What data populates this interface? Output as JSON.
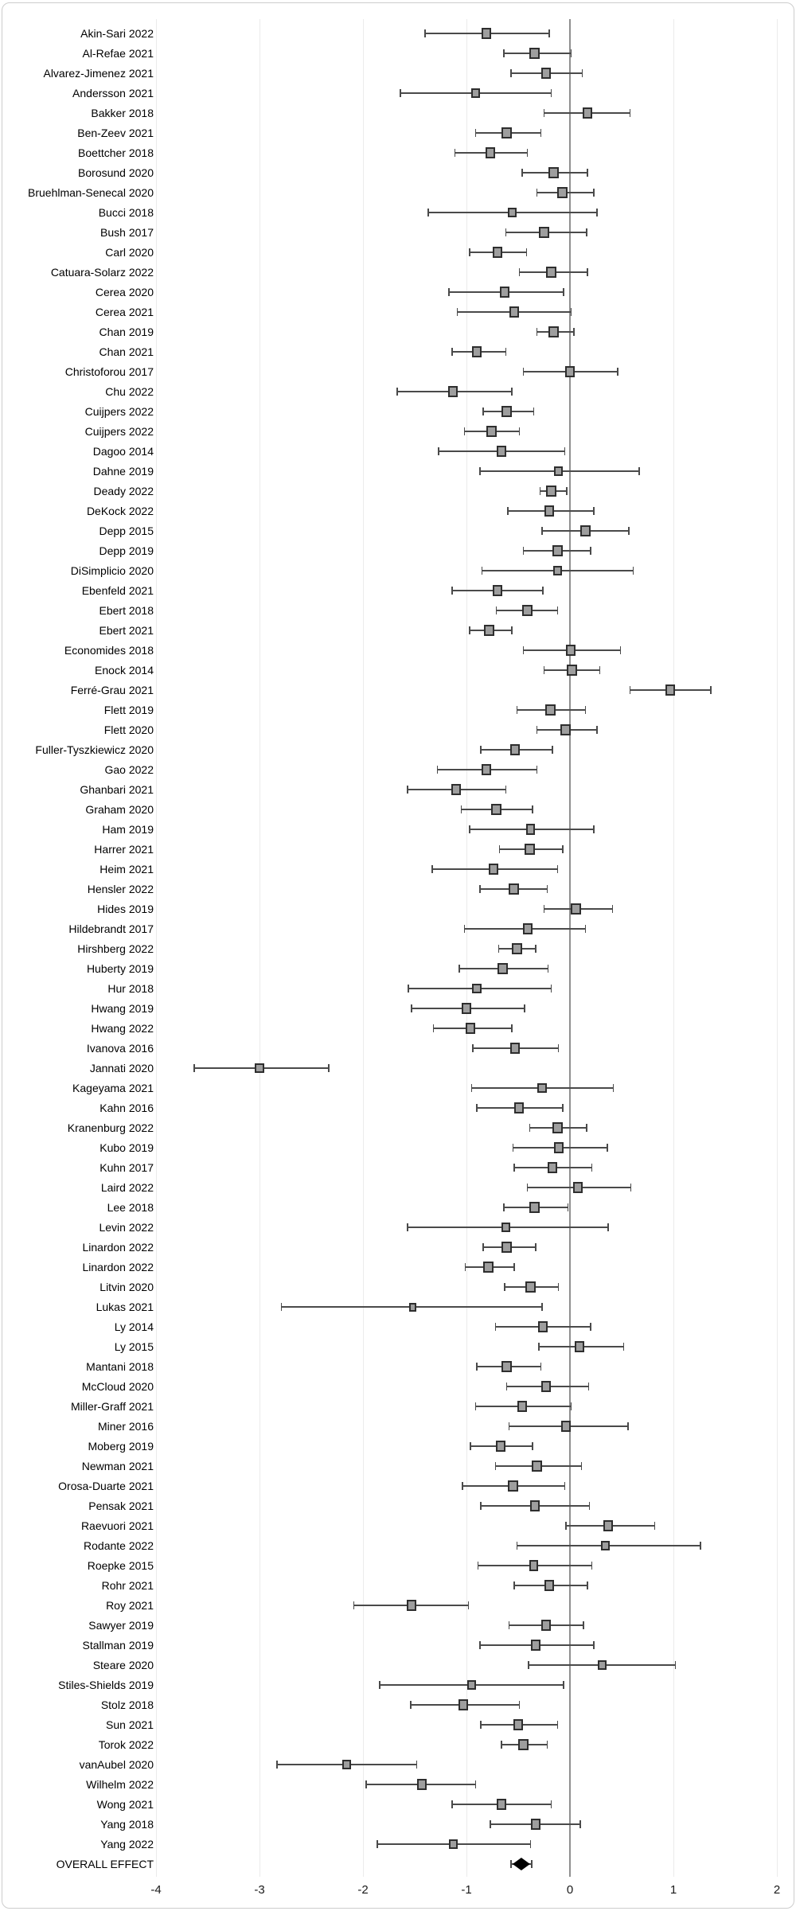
{
  "chart_data": {
    "type": "forest",
    "title": "",
    "xlabel": "",
    "ylabel": "",
    "xlim": [
      -4,
      2
    ],
    "x_ticks": [
      -4,
      -3,
      -2,
      -1,
      0,
      1,
      2
    ],
    "zero_line": 0,
    "grid": "vertical-light",
    "legend": "none",
    "marker": "gray-square-with-dark-border",
    "overall_marker": "black-diamond",
    "studies": [
      {
        "label": "Akin-Sari 2022",
        "est": -0.81,
        "lo": -1.4,
        "hi": -0.2
      },
      {
        "label": "Al-Refae 2021",
        "est": -0.34,
        "lo": -0.64,
        "hi": 0.01
      },
      {
        "label": "Alvarez-Jimenez 2021",
        "est": -0.23,
        "lo": -0.57,
        "hi": 0.12
      },
      {
        "label": "Andersson 2021",
        "est": -0.91,
        "lo": -1.64,
        "hi": -0.18
      },
      {
        "label": "Bakker 2018",
        "est": 0.17,
        "lo": -0.25,
        "hi": 0.58
      },
      {
        "label": "Ben-Zeev 2021",
        "est": -0.61,
        "lo": -0.91,
        "hi": -0.28
      },
      {
        "label": "Boettcher 2018",
        "est": -0.77,
        "lo": -1.11,
        "hi": -0.41
      },
      {
        "label": "Borosund 2020",
        "est": -0.16,
        "lo": -0.46,
        "hi": 0.17
      },
      {
        "label": "Bruehlman-Senecal 2020",
        "est": -0.07,
        "lo": -0.32,
        "hi": 0.23
      },
      {
        "label": "Bucci 2018",
        "est": -0.56,
        "lo": -1.37,
        "hi": 0.26
      },
      {
        "label": "Bush 2017",
        "est": -0.25,
        "lo": -0.62,
        "hi": 0.16
      },
      {
        "label": "Carl 2020",
        "est": -0.7,
        "lo": -0.97,
        "hi": -0.42
      },
      {
        "label": "Catuara-Solarz 2022",
        "est": -0.18,
        "lo": -0.49,
        "hi": 0.17
      },
      {
        "label": "Cerea 2020",
        "est": -0.63,
        "lo": -1.17,
        "hi": -0.06
      },
      {
        "label": "Cerea 2021",
        "est": -0.54,
        "lo": -1.09,
        "hi": 0.01
      },
      {
        "label": "Chan 2019",
        "est": -0.16,
        "lo": -0.32,
        "hi": 0.04
      },
      {
        "label": "Chan 2021",
        "est": -0.9,
        "lo": -1.14,
        "hi": -0.62
      },
      {
        "label": "Christoforou 2017",
        "est": 0.0,
        "lo": -0.45,
        "hi": 0.46
      },
      {
        "label": "Chu 2022",
        "est": -1.13,
        "lo": -1.67,
        "hi": -0.56
      },
      {
        "label": "Cuijpers 2022",
        "est": -0.61,
        "lo": -0.84,
        "hi": -0.35
      },
      {
        "label": "Cuijpers 2022",
        "est": -0.76,
        "lo": -1.02,
        "hi": -0.49
      },
      {
        "label": "Dagoo 2014",
        "est": -0.66,
        "lo": -1.27,
        "hi": -0.05
      },
      {
        "label": "Dahne 2019",
        "est": -0.11,
        "lo": -0.87,
        "hi": 0.67
      },
      {
        "label": "Deady 2022",
        "est": -0.18,
        "lo": -0.29,
        "hi": -0.03
      },
      {
        "label": "DeKock 2022",
        "est": -0.2,
        "lo": -0.6,
        "hi": 0.23
      },
      {
        "label": "Depp 2015",
        "est": 0.15,
        "lo": -0.27,
        "hi": 0.57
      },
      {
        "label": "Depp 2019",
        "est": -0.12,
        "lo": -0.45,
        "hi": 0.2
      },
      {
        "label": "DiSimplicio 2020",
        "est": -0.12,
        "lo": -0.85,
        "hi": 0.61
      },
      {
        "label": "Ebenfeld 2021",
        "est": -0.7,
        "lo": -1.14,
        "hi": -0.26
      },
      {
        "label": "Ebert 2018",
        "est": -0.41,
        "lo": -0.71,
        "hi": -0.12
      },
      {
        "label": "Ebert 2021",
        "est": -0.78,
        "lo": -0.97,
        "hi": -0.56
      },
      {
        "label": "Economides 2018",
        "est": 0.01,
        "lo": -0.45,
        "hi": 0.49
      },
      {
        "label": "Enock 2014",
        "est": 0.02,
        "lo": -0.25,
        "hi": 0.29
      },
      {
        "label": "Ferré-Grau 2021",
        "est": 0.97,
        "lo": 0.58,
        "hi": 1.36
      },
      {
        "label": "Flett 2019",
        "est": -0.19,
        "lo": -0.51,
        "hi": 0.15
      },
      {
        "label": "Flett 2020",
        "est": -0.04,
        "lo": -0.32,
        "hi": 0.26
      },
      {
        "label": "Fuller-Tyszkiewicz 2020",
        "est": -0.53,
        "lo": -0.86,
        "hi": -0.17
      },
      {
        "label": "Gao 2022",
        "est": -0.81,
        "lo": -1.28,
        "hi": -0.32
      },
      {
        "label": "Ghanbari 2021",
        "est": -1.1,
        "lo": -1.57,
        "hi": -0.62
      },
      {
        "label": "Graham 2020",
        "est": -0.71,
        "lo": -1.05,
        "hi": -0.36
      },
      {
        "label": "Ham 2019",
        "est": -0.38,
        "lo": -0.97,
        "hi": 0.23
      },
      {
        "label": "Harrer 2021",
        "est": -0.39,
        "lo": -0.68,
        "hi": -0.07
      },
      {
        "label": "Heim 2021",
        "est": -0.74,
        "lo": -1.33,
        "hi": -0.12
      },
      {
        "label": "Hensler 2022",
        "est": -0.54,
        "lo": -0.87,
        "hi": -0.22
      },
      {
        "label": "Hides 2019",
        "est": 0.06,
        "lo": -0.25,
        "hi": 0.41
      },
      {
        "label": "Hildebrandt 2017",
        "est": -0.41,
        "lo": -1.02,
        "hi": 0.15
      },
      {
        "label": "Hirshberg 2022",
        "est": -0.51,
        "lo": -0.69,
        "hi": -0.33
      },
      {
        "label": "Huberty 2019",
        "est": -0.65,
        "lo": -1.07,
        "hi": -0.21
      },
      {
        "label": "Hur 2018",
        "est": -0.9,
        "lo": -1.56,
        "hi": -0.18
      },
      {
        "label": "Hwang 2019",
        "est": -1.0,
        "lo": -1.53,
        "hi": -0.44
      },
      {
        "label": "Hwang 2022",
        "est": -0.96,
        "lo": -1.32,
        "hi": -0.56
      },
      {
        "label": "Ivanova 2016",
        "est": -0.53,
        "lo": -0.94,
        "hi": -0.11
      },
      {
        "label": "Jannati 2020",
        "est": -3.0,
        "lo": -3.63,
        "hi": -2.33
      },
      {
        "label": "Kageyama 2021",
        "est": -0.27,
        "lo": -0.95,
        "hi": 0.42
      },
      {
        "label": "Kahn 2016",
        "est": -0.49,
        "lo": -0.9,
        "hi": -0.07
      },
      {
        "label": "Kranenburg 2022",
        "est": -0.12,
        "lo": -0.39,
        "hi": 0.16
      },
      {
        "label": "Kubo 2019",
        "est": -0.11,
        "lo": -0.55,
        "hi": 0.36
      },
      {
        "label": "Kuhn 2017",
        "est": -0.17,
        "lo": -0.54,
        "hi": 0.21
      },
      {
        "label": "Laird 2022",
        "est": 0.08,
        "lo": -0.41,
        "hi": 0.59
      },
      {
        "label": "Lee 2018",
        "est": -0.34,
        "lo": -0.64,
        "hi": -0.02
      },
      {
        "label": "Levin 2022",
        "est": -0.62,
        "lo": -1.57,
        "hi": 0.37
      },
      {
        "label": "Linardon 2022",
        "est": -0.61,
        "lo": -0.84,
        "hi": -0.33
      },
      {
        "label": "Linardon 2022",
        "est": -0.79,
        "lo": -1.01,
        "hi": -0.54
      },
      {
        "label": "Litvin 2020",
        "est": -0.38,
        "lo": -0.63,
        "hi": -0.11
      },
      {
        "label": "Lukas 2021",
        "est": -1.52,
        "lo": -2.79,
        "hi": -0.27
      },
      {
        "label": "Ly 2014",
        "est": -0.26,
        "lo": -0.72,
        "hi": 0.2
      },
      {
        "label": "Ly 2015",
        "est": 0.09,
        "lo": -0.3,
        "hi": 0.52
      },
      {
        "label": "Mantani 2018",
        "est": -0.61,
        "lo": -0.9,
        "hi": -0.28
      },
      {
        "label": "McCloud 2020",
        "est": -0.23,
        "lo": -0.61,
        "hi": 0.18
      },
      {
        "label": "Miller-Graff 2021",
        "est": -0.46,
        "lo": -0.91,
        "hi": 0.01
      },
      {
        "label": "Miner 2016",
        "est": -0.04,
        "lo": -0.59,
        "hi": 0.56
      },
      {
        "label": "Moberg 2019",
        "est": -0.67,
        "lo": -0.96,
        "hi": -0.36
      },
      {
        "label": "Newman 2021",
        "est": -0.32,
        "lo": -0.72,
        "hi": 0.11
      },
      {
        "label": "Orosa-Duarte 2021",
        "est": -0.55,
        "lo": -1.04,
        "hi": -0.05
      },
      {
        "label": "Pensak 2021",
        "est": -0.34,
        "lo": -0.86,
        "hi": 0.19
      },
      {
        "label": "Raevuori 2021",
        "est": 0.37,
        "lo": -0.04,
        "hi": 0.82
      },
      {
        "label": "Rodante 2022",
        "est": 0.34,
        "lo": -0.51,
        "hi": 1.26
      },
      {
        "label": "Roepke 2015",
        "est": -0.35,
        "lo": -0.89,
        "hi": 0.21
      },
      {
        "label": "Rohr 2021",
        "est": -0.2,
        "lo": -0.54,
        "hi": 0.17
      },
      {
        "label": "Roy 2021",
        "est": -1.53,
        "lo": -2.09,
        "hi": -0.98
      },
      {
        "label": "Sawyer 2019",
        "est": -0.23,
        "lo": -0.59,
        "hi": 0.13
      },
      {
        "label": "Stallman 2019",
        "est": -0.33,
        "lo": -0.87,
        "hi": 0.23
      },
      {
        "label": "Steare 2020",
        "est": 0.31,
        "lo": -0.4,
        "hi": 1.02
      },
      {
        "label": "Stiles-Shields 2019",
        "est": -0.95,
        "lo": -1.84,
        "hi": -0.06
      },
      {
        "label": "Stolz 2018",
        "est": -1.03,
        "lo": -1.54,
        "hi": -0.49
      },
      {
        "label": "Sun 2021",
        "est": -0.5,
        "lo": -0.86,
        "hi": -0.12
      },
      {
        "label": "Torok 2022",
        "est": -0.45,
        "lo": -0.66,
        "hi": -0.22
      },
      {
        "label": "vanAubel 2020",
        "est": -2.16,
        "lo": -2.83,
        "hi": -1.48
      },
      {
        "label": "Wilhelm 2022",
        "est": -1.43,
        "lo": -1.97,
        "hi": -0.91
      },
      {
        "label": "Wong 2021",
        "est": -0.66,
        "lo": -1.14,
        "hi": -0.18
      },
      {
        "label": "Yang 2018",
        "est": -0.33,
        "lo": -0.77,
        "hi": 0.1
      },
      {
        "label": "Yang 2022",
        "est": -1.13,
        "lo": -1.86,
        "hi": -0.38
      }
    ],
    "overall": {
      "label": "OVERALL EFFECT",
      "est": -0.47,
      "lo": -0.57,
      "hi": -0.37
    }
  },
  "colors": {
    "marker_fill": "#9e9e9e",
    "marker_border": "#2e2e2e",
    "whisker": "#4a4a4a",
    "gridline": "#ebebeb",
    "zero_line": "#8f8f8f",
    "text": "#000000",
    "overall_diamond": "#000000",
    "frame_border": "#cdcdcd",
    "background": "#ffffff"
  }
}
